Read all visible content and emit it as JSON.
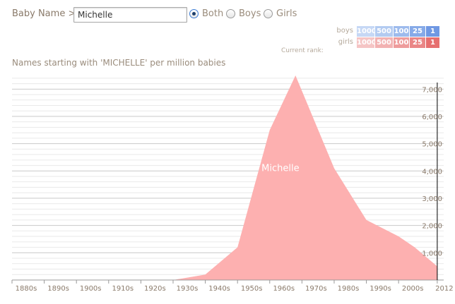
{
  "header": {
    "baby_name_label": "Baby Name >",
    "name_value": "Michelle",
    "radios": [
      {
        "label": "Both",
        "checked": true
      },
      {
        "label": "Boys",
        "checked": false
      },
      {
        "label": "Girls",
        "checked": false
      }
    ]
  },
  "rank_legend": {
    "boys_label": "boys",
    "girls_label": "girls",
    "ranks": [
      "1000",
      "500",
      "100",
      "25",
      "1"
    ],
    "boys_colors": [
      "#c6d8f5",
      "#b3cbf1",
      "#9dbbed",
      "#86aae8",
      "#6f98e3"
    ],
    "girls_colors": [
      "#f5c5c5",
      "#f2b2b2",
      "#ee9c9c",
      "#ea8686",
      "#e66f6f"
    ],
    "current_rank_label": "Current rank:"
  },
  "subtitle": "Names starting with 'MICHELLE' per million babies",
  "chart_data": {
    "type": "area",
    "title": "Names starting with 'MICHELLE' per million babies",
    "x_tick_labels": [
      "1880s",
      "1890s",
      "1900s",
      "1910s",
      "1920s",
      "1930s",
      "1940s",
      "1950s",
      "1960s",
      "1970s",
      "1980s",
      "1990s",
      "2000s",
      "2012"
    ],
    "y_tick_labels": [
      "1,000",
      "2,000",
      "3,000",
      "4,000",
      "5,000",
      "6,000",
      "7,000"
    ],
    "y_ticks": [
      1000,
      2000,
      3000,
      4000,
      5000,
      6000,
      7000
    ],
    "ylim": [
      0,
      7500
    ],
    "xlim": [
      1880,
      2014
    ],
    "grid": true,
    "series": [
      {
        "name": "Michelle",
        "color": "#fdb0b0",
        "x": [
          1880,
          1930,
          1940,
          1950,
          1960,
          1968,
          1980,
          1990,
          2000,
          2005,
          2008,
          2010,
          2012
        ],
        "values": [
          0,
          0,
          200,
          1200,
          5500,
          7500,
          4100,
          2200,
          1600,
          1200,
          900,
          700,
          500
        ]
      }
    ]
  }
}
